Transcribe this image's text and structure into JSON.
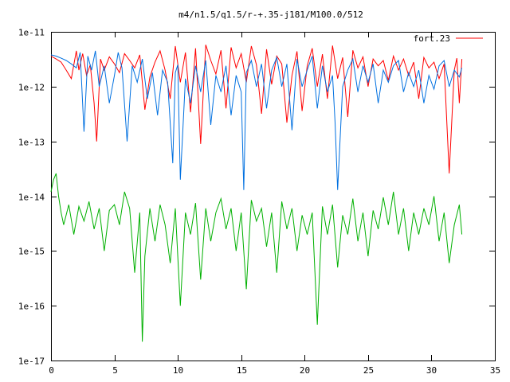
{
  "chart_data": {
    "type": "line",
    "title": "m4/n1.5/q1.5/r-+.35-j181/M100.0/512",
    "xlabel": "",
    "ylabel": "",
    "xlim": [
      0,
      35
    ],
    "ylim": [
      1e-17,
      1e-11
    ],
    "y_scale": "log",
    "grid": false,
    "legend_position": "top-right",
    "x_ticks": [
      0,
      5,
      10,
      15,
      20,
      25,
      30,
      35
    ],
    "x_tick_labels": [
      "0",
      "5",
      "10",
      "15",
      "20",
      "25",
      "30",
      "35"
    ],
    "y_ticks": [
      1e-17,
      1e-16,
      1e-15,
      1e-14,
      1e-13,
      1e-12,
      1e-11
    ],
    "y_tick_labels": [
      "1e-17",
      "1e-16",
      "1e-15",
      "1e-14",
      "1e-13",
      "1e-12",
      "1e-11"
    ],
    "series": [
      {
        "name": "fort.23",
        "color": "#ff0000",
        "legend": true,
        "x": [
          0,
          0.4,
          0.8,
          1.2,
          1.6,
          2.0,
          2.2,
          2.5,
          2.8,
          3.1,
          3.4,
          3.6,
          3.9,
          4.2,
          4.6,
          5.0,
          5.4,
          5.8,
          6.2,
          6.6,
          7.0,
          7.4,
          7.8,
          8.2,
          8.6,
          9.0,
          9.4,
          9.8,
          10.2,
          10.6,
          11.0,
          11.4,
          11.8,
          12.2,
          12.6,
          13.0,
          13.4,
          13.8,
          14.2,
          14.6,
          15.0,
          15.4,
          15.8,
          16.2,
          16.6,
          17.0,
          17.4,
          17.8,
          18.2,
          18.6,
          19.0,
          19.4,
          19.8,
          20.2,
          20.6,
          21.0,
          21.4,
          21.8,
          22.2,
          22.6,
          23.0,
          23.4,
          23.8,
          24.2,
          24.6,
          25.0,
          25.4,
          25.8,
          26.2,
          26.6,
          27.0,
          27.4,
          27.8,
          28.2,
          28.6,
          29.0,
          29.4,
          29.8,
          30.2,
          30.6,
          31.0,
          31.4,
          31.8,
          32.0,
          32.2,
          32.4
        ],
        "values": [
          3.6e-12,
          3.2e-12,
          2.8e-12,
          2e-12,
          1.4e-12,
          4.5e-12,
          2e-12,
          4e-12,
          1.6e-12,
          2.5e-12,
          5e-13,
          1e-13,
          3.2e-12,
          2e-12,
          3.5e-12,
          2.6e-12,
          1.8e-12,
          4e-12,
          3e-12,
          2.2e-12,
          3.8e-12,
          3.8e-13,
          1.5e-12,
          2.8e-12,
          4.5e-12,
          2e-12,
          6e-13,
          5.5e-12,
          1.2e-12,
          4.2e-12,
          3.4e-13,
          5e-12,
          9e-14,
          5.8e-12,
          3e-12,
          1.7e-12,
          4.6e-12,
          4e-13,
          5.2e-12,
          2.2e-12,
          4e-12,
          1.2e-12,
          5.5e-12,
          2.5e-12,
          3.2e-13,
          4.8e-12,
          1.1e-12,
          3.6e-12,
          2.6e-12,
          2.2e-13,
          1.6e-12,
          4.4e-12,
          3.6e-13,
          2.4e-12,
          5e-12,
          1e-12,
          3.9e-12,
          6e-13,
          5.6e-12,
          1.4e-12,
          3.4e-12,
          2.8e-13,
          4.6e-12,
          2.2e-12,
          3.5e-12,
          1e-12,
          3.2e-12,
          2.4e-12,
          3e-12,
          1.3e-12,
          3.6e-12,
          2e-12,
          3.2e-12,
          1.6e-12,
          2.8e-12,
          6e-13,
          3.4e-12,
          2.2e-12,
          2.8e-12,
          1.4e-12,
          2.6e-12,
          2.6e-14,
          2e-12,
          3.3e-12,
          5e-13,
          3.2e-12
        ]
      },
      {
        "name": "",
        "color": "#0070e0",
        "legend": false,
        "x": [
          0,
          0.4,
          0.8,
          1.2,
          1.6,
          2.0,
          2.3,
          2.6,
          2.9,
          3.2,
          3.5,
          3.8,
          4.2,
          4.6,
          5.0,
          5.3,
          5.6,
          6.0,
          6.4,
          6.8,
          7.2,
          7.6,
          8.0,
          8.4,
          8.8,
          9.2,
          9.6,
          9.8,
          10.0,
          10.2,
          10.6,
          11.0,
          11.4,
          11.8,
          12.2,
          12.6,
          13.0,
          13.4,
          13.8,
          14.2,
          14.6,
          15.0,
          15.2,
          15.4,
          15.8,
          16.2,
          16.6,
          17.0,
          17.4,
          17.8,
          18.2,
          18.6,
          19.0,
          19.4,
          19.8,
          20.2,
          20.6,
          21.0,
          21.4,
          21.8,
          22.2,
          22.4,
          22.6,
          23.0,
          23.4,
          23.8,
          24.2,
          24.6,
          25.0,
          25.4,
          25.8,
          26.2,
          26.6,
          27.0,
          27.4,
          27.8,
          28.2,
          28.6,
          29.0,
          29.4,
          29.8,
          30.2,
          30.6,
          31.0,
          31.4,
          31.8,
          32.2,
          32.4
        ],
        "values": [
          3.8e-12,
          3.6e-12,
          3.3e-12,
          3e-12,
          2.6e-12,
          2.2e-12,
          4.2e-12,
          1.5e-13,
          3.6e-12,
          2e-12,
          4.5e-12,
          1e-12,
          2.4e-12,
          5e-13,
          1.6e-12,
          4.2e-12,
          2.2e-12,
          1e-13,
          2.4e-12,
          1.2e-12,
          3.2e-12,
          6e-13,
          1.8e-12,
          3e-13,
          2e-12,
          1.2e-12,
          4e-14,
          1.8e-12,
          2.5e-12,
          2e-14,
          1.4e-12,
          5e-13,
          2.4e-12,
          8e-13,
          3e-12,
          2e-13,
          1.6e-12,
          8e-13,
          2.4e-12,
          3e-13,
          1.6e-12,
          8e-13,
          1.3e-14,
          1.8e-12,
          3e-12,
          1e-12,
          2.6e-12,
          4e-13,
          2e-12,
          3.4e-12,
          1e-12,
          2.6e-12,
          1.6e-13,
          3.2e-12,
          1e-12,
          2e-12,
          3.6e-12,
          4e-13,
          2.4e-12,
          8e-13,
          1.6e-12,
          2.2e-13,
          1.3e-14,
          1e-12,
          2e-12,
          3.2e-12,
          8e-13,
          2.4e-12,
          1.2e-12,
          2.6e-12,
          5e-13,
          2e-12,
          1.2e-12,
          2.4e-12,
          3e-12,
          8e-13,
          1.8e-12,
          1e-12,
          2e-12,
          5e-13,
          1.6e-12,
          9e-13,
          2.4e-12,
          3e-12,
          1e-12,
          2e-12,
          1.5e-12,
          2.2e-12
        ]
      },
      {
        "name": "",
        "color": "#00b000",
        "legend": false,
        "x": [
          0,
          0.2,
          0.4,
          0.6,
          0.8,
          1.0,
          1.4,
          1.8,
          2.2,
          2.6,
          3.0,
          3.4,
          3.8,
          4.2,
          4.6,
          5.0,
          5.4,
          5.8,
          6.2,
          6.6,
          7.0,
          7.2,
          7.4,
          7.8,
          8.2,
          8.6,
          9.0,
          9.4,
          9.8,
          10.2,
          10.6,
          11.0,
          11.4,
          11.8,
          12.2,
          12.6,
          13.0,
          13.4,
          13.8,
          14.2,
          14.6,
          15.0,
          15.4,
          15.8,
          16.2,
          16.6,
          17.0,
          17.4,
          17.8,
          18.2,
          18.6,
          19.0,
          19.4,
          19.8,
          20.2,
          20.6,
          21.0,
          21.4,
          21.8,
          22.2,
          22.6,
          23.0,
          23.4,
          23.8,
          24.2,
          24.6,
          25.0,
          25.4,
          25.8,
          26.2,
          26.6,
          27.0,
          27.4,
          27.8,
          28.2,
          28.6,
          29.0,
          29.4,
          29.8,
          30.2,
          30.6,
          31.0,
          31.4,
          31.8,
          32.2,
          32.4
        ],
        "values": [
          1.2e-14,
          2e-14,
          2.6e-14,
          1e-14,
          5e-15,
          3e-15,
          7e-15,
          2e-15,
          6.5e-15,
          3.5e-15,
          8e-15,
          2.5e-15,
          6e-15,
          1e-15,
          5.5e-15,
          7e-15,
          3e-15,
          1.2e-14,
          6e-15,
          4e-16,
          5e-15,
          2.2e-17,
          8e-16,
          6e-15,
          1.5e-15,
          7e-15,
          3e-15,
          6e-16,
          6e-15,
          1e-16,
          5e-15,
          2e-15,
          7.5e-15,
          3e-16,
          6e-15,
          1.5e-15,
          5e-15,
          9e-15,
          2.5e-15,
          6e-15,
          1e-15,
          5e-15,
          2e-16,
          8.5e-15,
          3.5e-15,
          6e-15,
          1.2e-15,
          5e-15,
          4e-16,
          8e-15,
          2.5e-15,
          6e-15,
          1e-15,
          4.5e-15,
          2e-15,
          5e-15,
          4.5e-17,
          6.5e-15,
          2e-15,
          7e-15,
          5e-16,
          4.5e-15,
          2e-15,
          9e-15,
          1.5e-15,
          5e-15,
          8e-16,
          5.5e-15,
          2.5e-15,
          9.5e-15,
          3e-15,
          1.2e-14,
          2e-15,
          6e-15,
          1e-15,
          5e-15,
          2e-15,
          6e-15,
          3e-15,
          1e-14,
          1.5e-15,
          5e-15,
          6e-16,
          3e-15,
          7e-15,
          2e-15
        ]
      }
    ]
  }
}
